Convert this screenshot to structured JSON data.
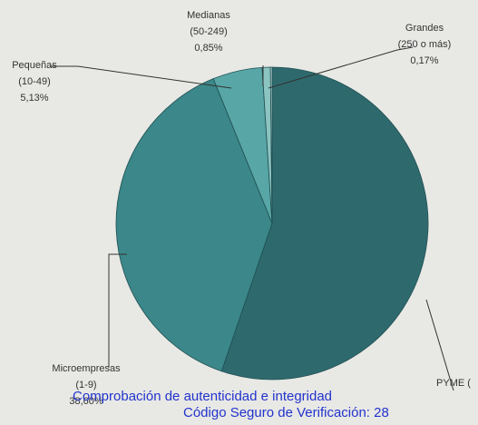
{
  "chart_data": {
    "type": "pie",
    "categories": [
      "PYME (",
      "Microempresas",
      "Pequeñas",
      "Medianas",
      "Grandes"
    ],
    "ranges": [
      null,
      "(1-9)",
      "(10-49)",
      "(50-249)",
      "(250 o más)"
    ],
    "values": [
      55.25,
      38.6,
      5.13,
      0.85,
      0.17
    ],
    "value_labels": [
      null,
      "38,60%",
      "5,13%",
      "0,85%",
      "0,17%"
    ],
    "colors": [
      "#2e6a6d",
      "#3b8789",
      "#58a6a6",
      "#8cc4c1",
      "#c6dfdc"
    ]
  },
  "watermark": {
    "line1": "Comprobación de autenticidad e integridad",
    "line2": "Código Seguro de Verificación: 28"
  }
}
